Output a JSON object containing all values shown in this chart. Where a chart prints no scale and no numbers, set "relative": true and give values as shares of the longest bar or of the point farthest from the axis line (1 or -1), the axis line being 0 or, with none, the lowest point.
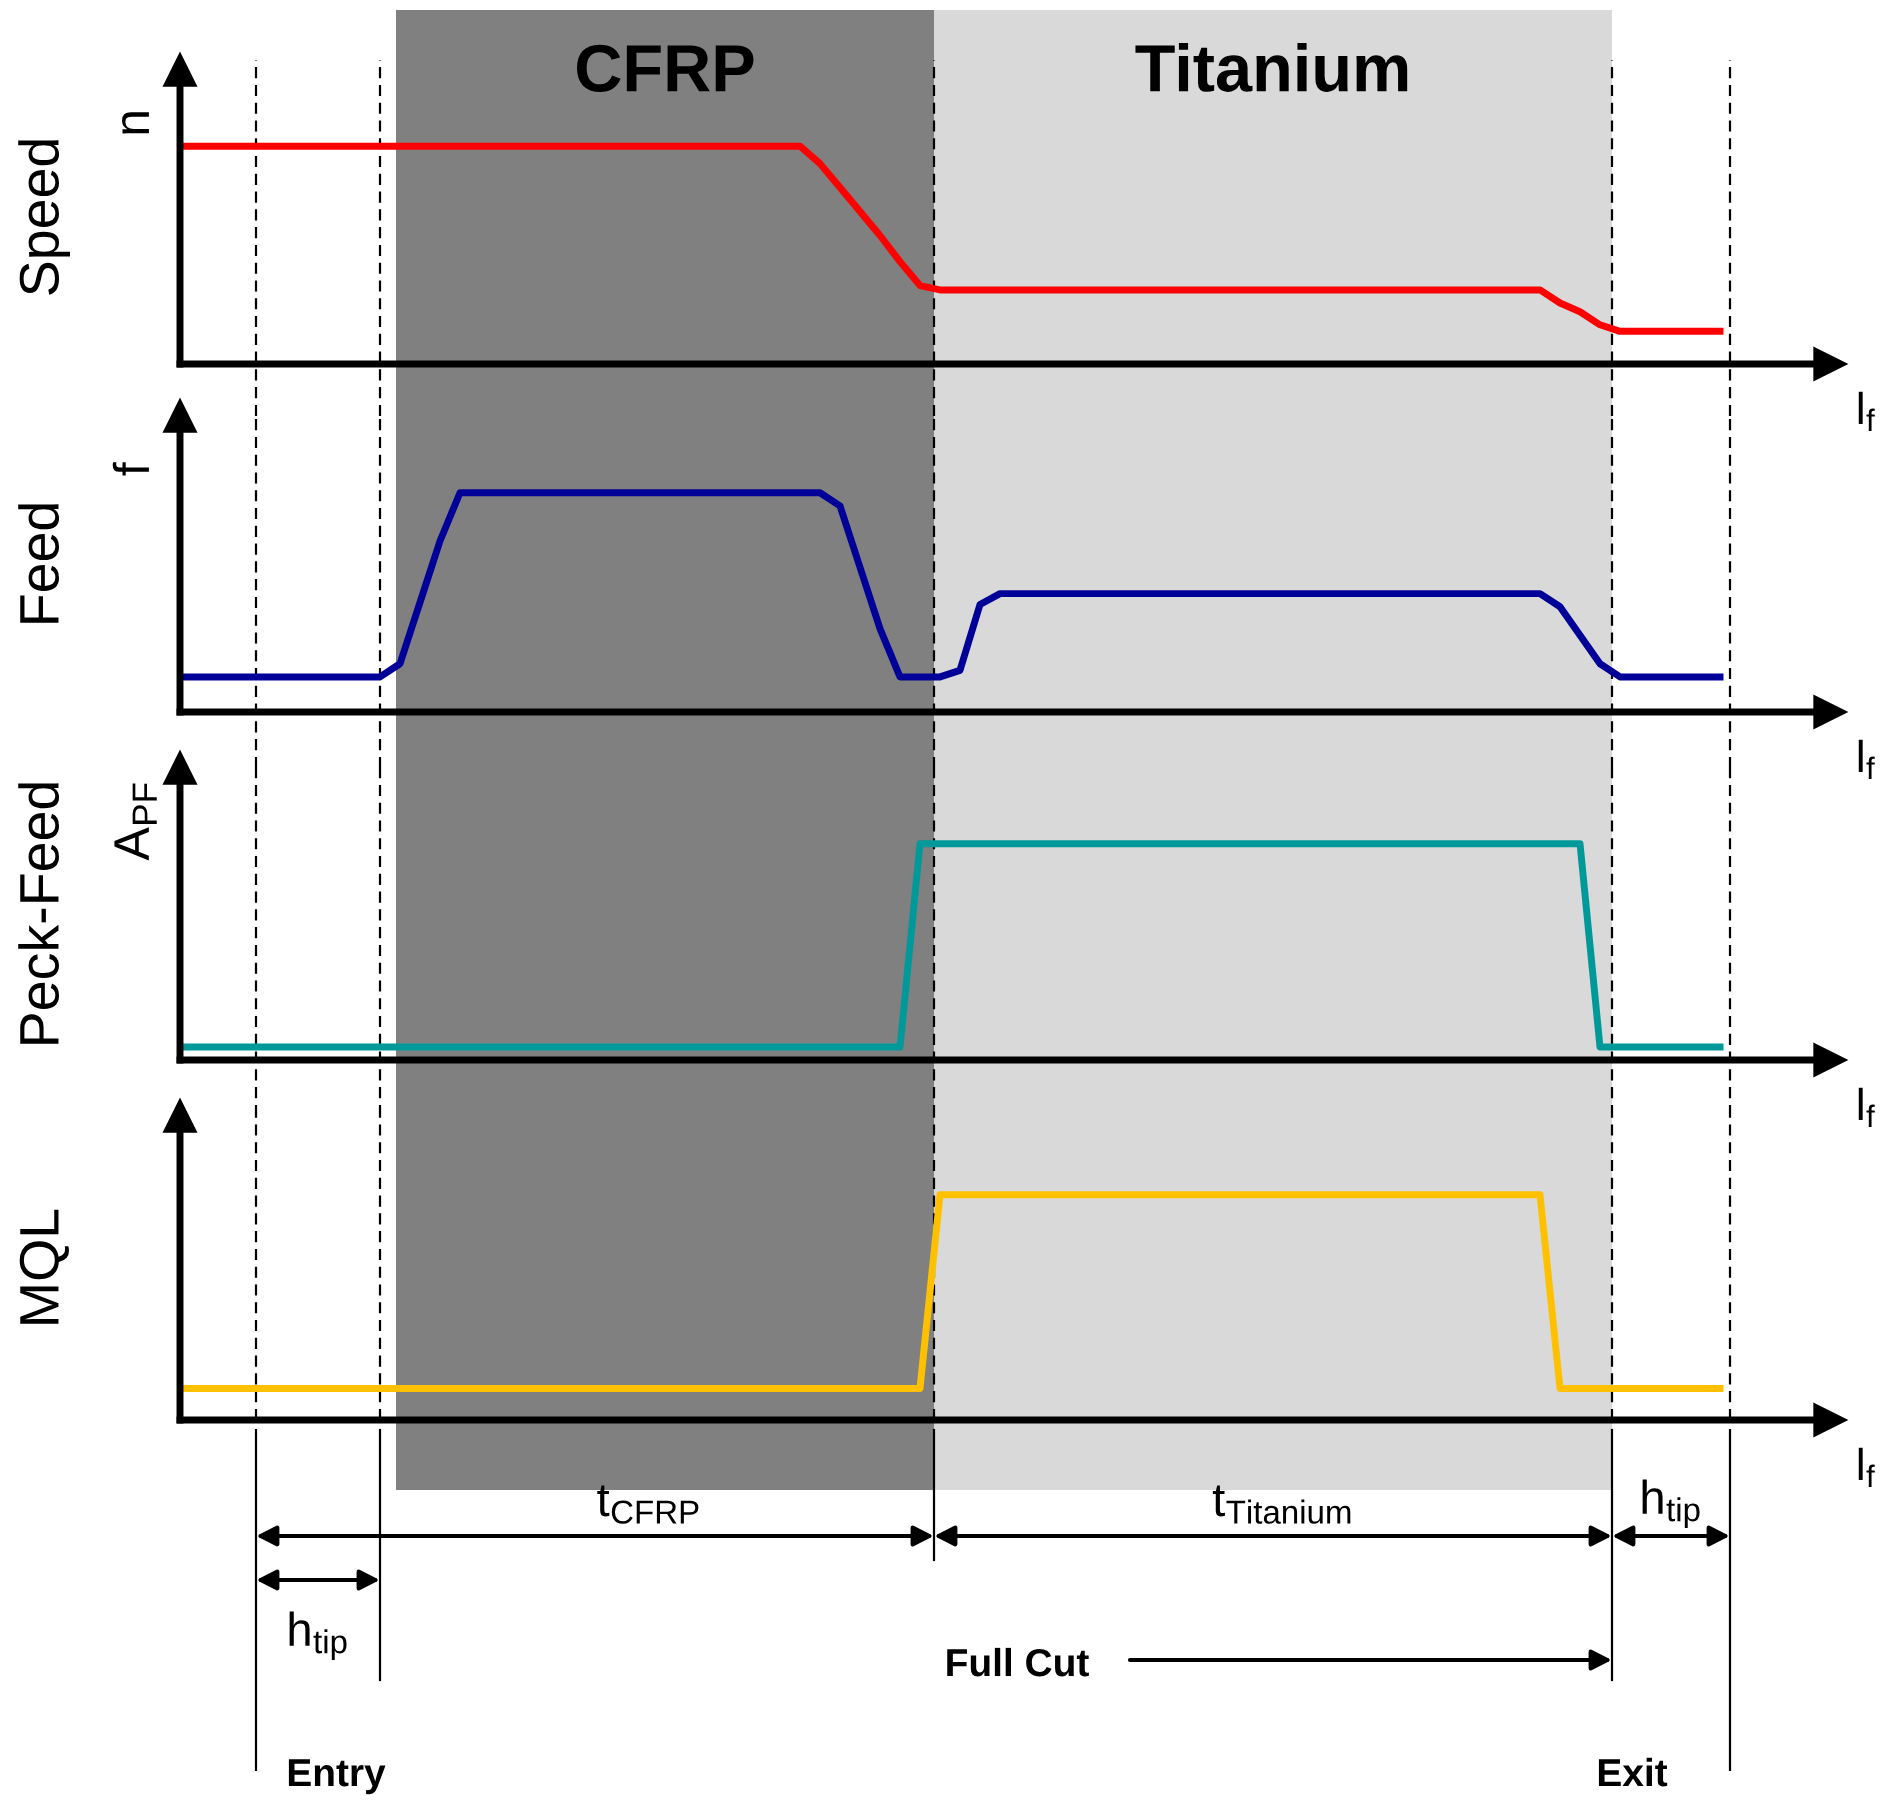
{
  "chart_data": [
    {
      "type": "line",
      "relative": true,
      "tick_labels": false,
      "legend": false,
      "ylabel": "Speed",
      "xlabel": "l$_{f}$",
      "annotations": [
        "n",
        "CFRP",
        "Titanium"
      ],
      "categories": [
        null,
        null,
        null,
        null,
        null,
        null,
        null,
        null,
        null,
        null,
        null,
        null,
        null,
        null,
        null,
        null,
        null,
        null,
        null,
        null,
        null,
        null,
        null,
        null,
        null,
        null,
        null,
        null,
        null,
        null,
        null,
        null,
        null,
        null,
        null,
        null,
        null,
        null,
        null,
        null,
        null,
        null,
        null,
        null,
        null,
        null,
        null,
        null,
        null,
        null,
        null,
        null,
        null,
        null,
        null,
        null,
        null,
        null,
        null,
        null,
        null,
        null,
        null,
        null,
        null,
        null,
        null,
        null,
        null,
        null,
        null,
        null,
        null,
        null,
        null,
        null,
        null,
        null
      ],
      "series": [
        {
          "color": "#ff0000",
          "values": [
            1,
            1,
            1,
            1,
            1,
            1,
            1,
            1,
            1,
            1,
            1,
            1,
            1,
            1,
            1,
            1,
            1,
            1,
            1,
            1,
            1,
            1,
            1,
            1,
            1,
            1,
            1,
            1,
            1,
            1,
            1,
            1,
            0.92,
            0.81,
            0.7,
            0.59,
            0.47,
            0.36,
            0.34,
            0.34,
            0.34,
            0.34,
            0.34,
            0.34,
            0.34,
            0.34,
            0.34,
            0.34,
            0.34,
            0.34,
            0.34,
            0.34,
            0.34,
            0.34,
            0.34,
            0.34,
            0.34,
            0.34,
            0.34,
            0.34,
            0.34,
            0.34,
            0.34,
            0.34,
            0.34,
            0.34,
            0.34,
            0.34,
            0.34,
            0.28,
            0.24,
            0.18,
            0.15,
            0.15,
            0.15,
            0.15,
            0.15,
            0.15
          ]
        }
      ]
    },
    {
      "type": "line",
      "relative": true,
      "tick_labels": false,
      "legend": false,
      "ylabel": "Feed",
      "xlabel": "l$_{f}$",
      "annotations": [
        "f"
      ],
      "categories": [
        null,
        null,
        null,
        null,
        null,
        null,
        null,
        null,
        null,
        null,
        null,
        null,
        null,
        null,
        null,
        null,
        null,
        null,
        null,
        null,
        null,
        null,
        null,
        null,
        null,
        null,
        null,
        null,
        null,
        null,
        null,
        null,
        null,
        null,
        null,
        null,
        null,
        null,
        null,
        null,
        null,
        null,
        null,
        null,
        null,
        null,
        null,
        null,
        null,
        null,
        null,
        null,
        null,
        null,
        null,
        null,
        null,
        null,
        null,
        null,
        null,
        null,
        null,
        null,
        null,
        null,
        null,
        null,
        null,
        null,
        null,
        null,
        null,
        null,
        null,
        null,
        null,
        null
      ],
      "series": [
        {
          "color": "#000099",
          "values": [
            0.16,
            0.16,
            0.16,
            0.16,
            0.16,
            0.16,
            0.16,
            0.16,
            0.16,
            0.16,
            0.16,
            0.22,
            0.5,
            0.78,
            1,
            1,
            1,
            1,
            1,
            1,
            1,
            1,
            1,
            1,
            1,
            1,
            1,
            1,
            1,
            1,
            1,
            1,
            1,
            0.94,
            0.66,
            0.38,
            0.16,
            0.16,
            0.16,
            0.19,
            0.49,
            0.54,
            0.54,
            0.54,
            0.54,
            0.54,
            0.54,
            0.54,
            0.54,
            0.54,
            0.54,
            0.54,
            0.54,
            0.54,
            0.54,
            0.54,
            0.54,
            0.54,
            0.54,
            0.54,
            0.54,
            0.54,
            0.54,
            0.54,
            0.54,
            0.54,
            0.54,
            0.54,
            0.54,
            0.48,
            0.35,
            0.22,
            0.16,
            0.16,
            0.16,
            0.16,
            0.16,
            0.16
          ]
        }
      ]
    },
    {
      "type": "line",
      "relative": true,
      "tick_labels": false,
      "legend": false,
      "ylabel": "Peck-Feed",
      "xlabel": "l$_{f}$",
      "annotations": [
        "A$_{PF}$"
      ],
      "categories": [
        null,
        null,
        null,
        null,
        null,
        null,
        null,
        null,
        null,
        null,
        null,
        null,
        null,
        null,
        null,
        null,
        null,
        null,
        null,
        null,
        null,
        null,
        null,
        null,
        null,
        null,
        null,
        null,
        null,
        null,
        null,
        null,
        null,
        null,
        null,
        null,
        null,
        null,
        null,
        null,
        null,
        null,
        null,
        null,
        null,
        null,
        null,
        null,
        null,
        null,
        null,
        null,
        null,
        null,
        null,
        null,
        null,
        null,
        null,
        null,
        null,
        null,
        null,
        null,
        null,
        null,
        null,
        null,
        null,
        null,
        null,
        null,
        null,
        null,
        null,
        null,
        null,
        null
      ],
      "series": [
        {
          "color": "#009999",
          "values": [
            0.06,
            0.06,
            0.06,
            0.06,
            0.06,
            0.06,
            0.06,
            0.06,
            0.06,
            0.06,
            0.06,
            0.06,
            0.06,
            0.06,
            0.06,
            0.06,
            0.06,
            0.06,
            0.06,
            0.06,
            0.06,
            0.06,
            0.06,
            0.06,
            0.06,
            0.06,
            0.06,
            0.06,
            0.06,
            0.06,
            0.06,
            0.06,
            0.06,
            0.06,
            0.06,
            0.06,
            0.06,
            1,
            1,
            1,
            1,
            1,
            1,
            1,
            1,
            1,
            1,
            1,
            1,
            1,
            1,
            1,
            1,
            1,
            1,
            1,
            1,
            1,
            1,
            1,
            1,
            1,
            1,
            1,
            1,
            1,
            1,
            1,
            1,
            1,
            1,
            0.06,
            0.06,
            0.06,
            0.06,
            0.06,
            0.06,
            0.06
          ]
        }
      ]
    },
    {
      "type": "line",
      "relative": true,
      "tick_labels": false,
      "legend": false,
      "ylabel": "MQL",
      "xlabel": "l$_{f}$",
      "annotations": [
        "t$_{CFRP}$",
        "t$_{Titanium}$",
        "h$_{tip}$",
        "h$_{tip}$",
        "Full Cut",
        "Entry",
        "Exit"
      ],
      "categories": [
        null,
        null,
        null,
        null,
        null,
        null,
        null,
        null,
        null,
        null,
        null,
        null,
        null,
        null,
        null,
        null,
        null,
        null,
        null,
        null,
        null,
        null,
        null,
        null,
        null,
        null,
        null,
        null,
        null,
        null,
        null,
        null,
        null,
        null,
        null,
        null,
        null,
        null,
        null,
        null,
        null,
        null,
        null,
        null,
        null,
        null,
        null,
        null,
        null,
        null,
        null,
        null,
        null,
        null,
        null,
        null,
        null,
        null,
        null,
        null,
        null,
        null,
        null,
        null,
        null,
        null,
        null,
        null,
        null,
        null,
        null,
        null,
        null,
        null,
        null,
        null,
        null,
        null
      ],
      "series": [
        {
          "color": "#ffc000",
          "values": [
            0.14,
            0.14,
            0.14,
            0.14,
            0.14,
            0.14,
            0.14,
            0.14,
            0.14,
            0.14,
            0.14,
            0.14,
            0.14,
            0.14,
            0.14,
            0.14,
            0.14,
            0.14,
            0.14,
            0.14,
            0.14,
            0.14,
            0.14,
            0.14,
            0.14,
            0.14,
            0.14,
            0.14,
            0.14,
            0.14,
            0.14,
            0.14,
            0.14,
            0.14,
            0.14,
            0.14,
            0.14,
            0.14,
            1,
            1,
            1,
            1,
            1,
            1,
            1,
            1,
            1,
            1,
            1,
            1,
            1,
            1,
            1,
            1,
            1,
            1,
            1,
            1,
            1,
            1,
            1,
            1,
            1,
            1,
            1,
            1,
            1,
            1,
            1,
            0.14,
            0.14,
            0.14,
            0.14,
            0.14,
            0.14,
            0.14,
            0.14,
            0.14
          ]
        }
      ]
    }
  ]
}
